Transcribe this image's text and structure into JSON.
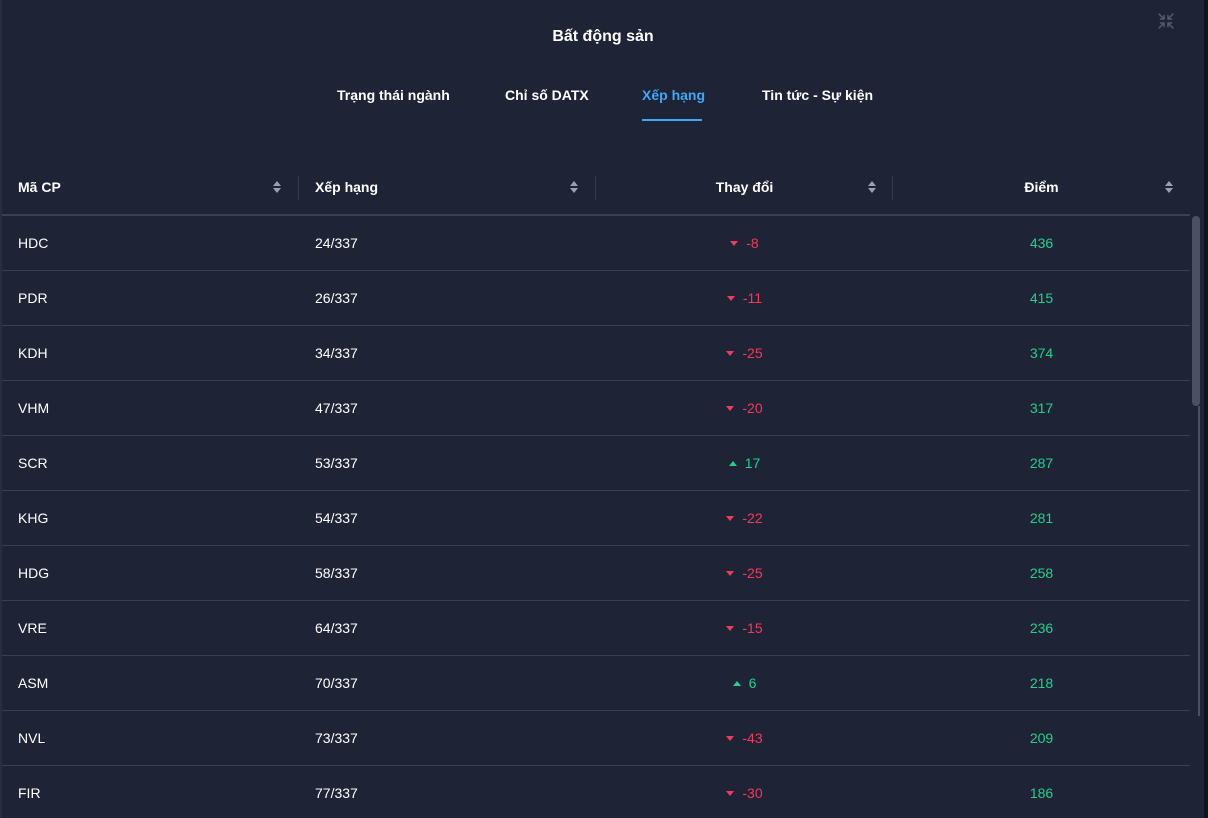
{
  "modal": {
    "title": "Bất động sản",
    "close_icon": "collapse-arrows-icon"
  },
  "tabs": [
    {
      "label": "Trạng thái ngành",
      "active": false
    },
    {
      "label": "Chỉ số DATX",
      "active": false
    },
    {
      "label": "Xếp hạng",
      "active": true
    },
    {
      "label": "Tin tức - Sự kiện",
      "active": false
    }
  ],
  "table": {
    "columns": [
      "Mã CP",
      "Xếp hạng",
      "Thay đổi",
      "Điểm"
    ],
    "rows": [
      {
        "code": "HDC",
        "rank": "24/337",
        "change": "-8",
        "dir": "down",
        "score": "436"
      },
      {
        "code": "PDR",
        "rank": "26/337",
        "change": "-11",
        "dir": "down",
        "score": "415"
      },
      {
        "code": "KDH",
        "rank": "34/337",
        "change": "-25",
        "dir": "down",
        "score": "374"
      },
      {
        "code": "VHM",
        "rank": "47/337",
        "change": "-20",
        "dir": "down",
        "score": "317"
      },
      {
        "code": "SCR",
        "rank": "53/337",
        "change": "17",
        "dir": "up",
        "score": "287"
      },
      {
        "code": "KHG",
        "rank": "54/337",
        "change": "-22",
        "dir": "down",
        "score": "281"
      },
      {
        "code": "HDG",
        "rank": "58/337",
        "change": "-25",
        "dir": "down",
        "score": "258"
      },
      {
        "code": "VRE",
        "rank": "64/337",
        "change": "-15",
        "dir": "down",
        "score": "236"
      },
      {
        "code": "ASM",
        "rank": "70/337",
        "change": "6",
        "dir": "up",
        "score": "218"
      },
      {
        "code": "NVL",
        "rank": "73/337",
        "change": "-43",
        "dir": "down",
        "score": "209"
      },
      {
        "code": "FIR",
        "rank": "77/337",
        "change": "-30",
        "dir": "down",
        "score": "186"
      }
    ]
  },
  "colors": {
    "background": "#1f2336",
    "accent": "#3fa9f5",
    "negative": "#f23a5c",
    "positive": "#1cd38a"
  }
}
